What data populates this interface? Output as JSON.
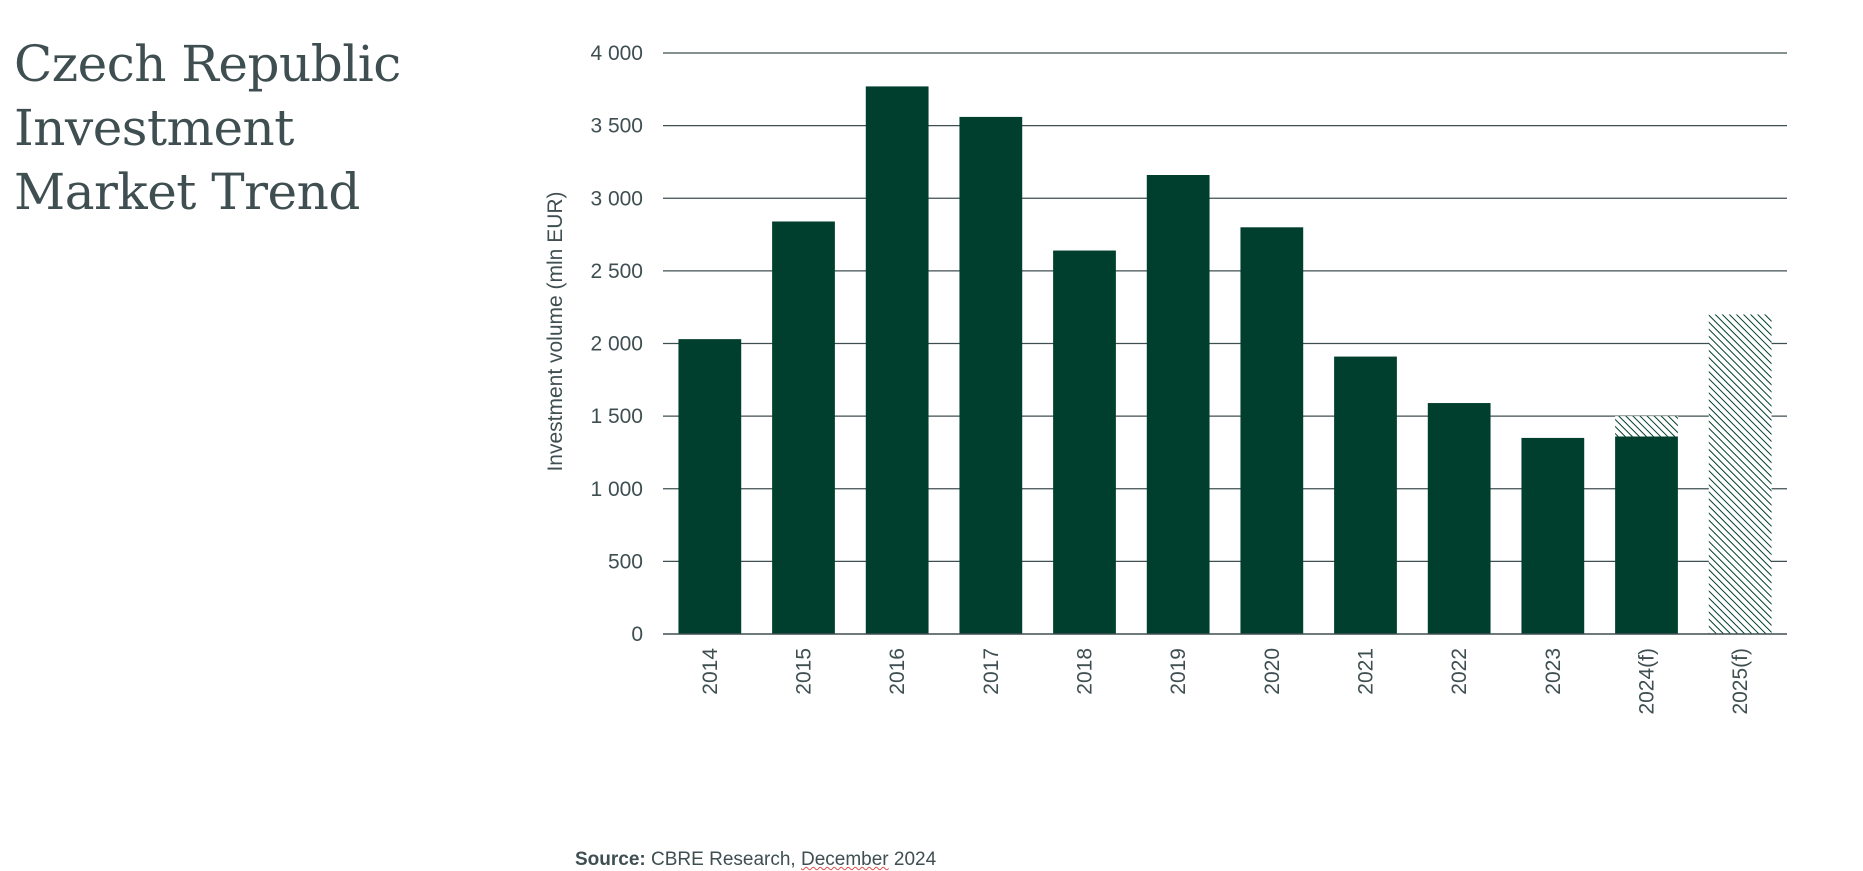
{
  "title_lines": [
    "Czech Republic",
    "Investment",
    "Market Trend"
  ],
  "source": {
    "label": "Source:",
    "text_before": " CBRE Research, ",
    "underlined": "December",
    "text_after": " 2024"
  },
  "colors": {
    "bar": "#003f2d",
    "hatch": "#003f2d",
    "grid": "#3f4f51",
    "text": "#3f4f51"
  },
  "chart_data": {
    "type": "bar",
    "title": "",
    "xlabel": "",
    "ylabel": "Investment volume (mln EUR)",
    "ylim": [
      0,
      4000
    ],
    "yticks": [
      0,
      500,
      1000,
      1500,
      2000,
      2500,
      3000,
      3500,
      4000
    ],
    "ytick_labels": [
      "0",
      "500",
      "1 000",
      "1 500",
      "2 000",
      "2 500",
      "3 000",
      "3 500",
      "4 000"
    ],
    "grid": true,
    "categories": [
      "2014",
      "2015",
      "2016",
      "2017",
      "2018",
      "2019",
      "2020",
      "2021",
      "2022",
      "2023",
      "2024(f)",
      "2025(f)"
    ],
    "series": [
      {
        "style": "solid",
        "values": [
          2030,
          2840,
          3770,
          3560,
          2640,
          3160,
          2800,
          1910,
          1590,
          1350,
          1360,
          0
        ]
      },
      {
        "style": "hatched",
        "values": [
          0,
          0,
          0,
          0,
          0,
          0,
          0,
          0,
          0,
          0,
          140,
          2200
        ]
      }
    ]
  }
}
